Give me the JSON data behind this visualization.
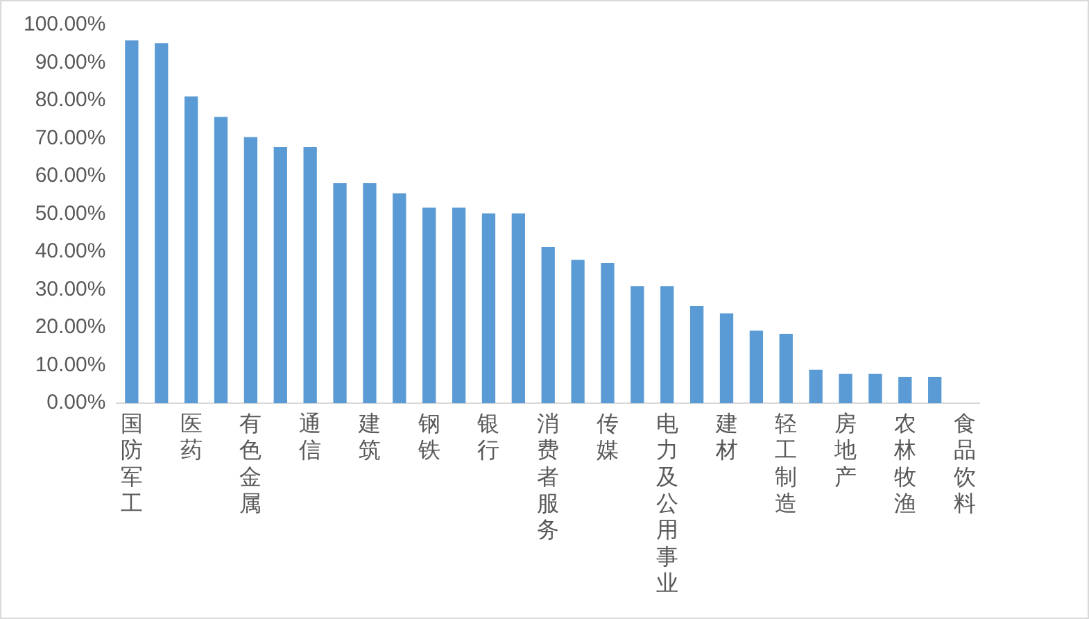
{
  "chart_data": {
    "type": "bar",
    "categories": [
      "国防军工",
      null,
      "医药",
      null,
      "有色金属",
      null,
      "通信",
      null,
      "建筑",
      null,
      "钢铁",
      null,
      "银行",
      null,
      "消费者服务",
      null,
      "传媒",
      null,
      "电力及公用事业",
      null,
      "建材",
      null,
      "轻工制造",
      null,
      "房地产",
      null,
      "农林牧渔",
      null,
      "食品饮料"
    ],
    "values": [
      95.9,
      95.2,
      81.1,
      75.7,
      70.4,
      67.7,
      67.7,
      58.2,
      58.2,
      55.5,
      51.7,
      51.7,
      50.2,
      50.2,
      41.3,
      37.9,
      37.1,
      31.0,
      31.0,
      25.7,
      23.8,
      19.2,
      18.4,
      8.9,
      7.8,
      7.8,
      7.0,
      7.0,
      0
    ],
    "color": "#5b9bd5",
    "ylim": [
      0,
      100
    ],
    "yticks": [
      {
        "value": 0,
        "label": "0.00%"
      },
      {
        "value": 10,
        "label": "10.00%"
      },
      {
        "value": 20,
        "label": "20.00%"
      },
      {
        "value": 30,
        "label": "30.00%"
      },
      {
        "value": 40,
        "label": "40.00%"
      },
      {
        "value": 50,
        "label": "50.00%"
      },
      {
        "value": 60,
        "label": "60.00%"
      },
      {
        "value": 70,
        "label": "70.00%"
      },
      {
        "value": 80,
        "label": "80.00%"
      },
      {
        "value": 90,
        "label": "90.00%"
      },
      {
        "value": 100,
        "label": "100.00%"
      }
    ],
    "grid": false,
    "legend": false
  }
}
